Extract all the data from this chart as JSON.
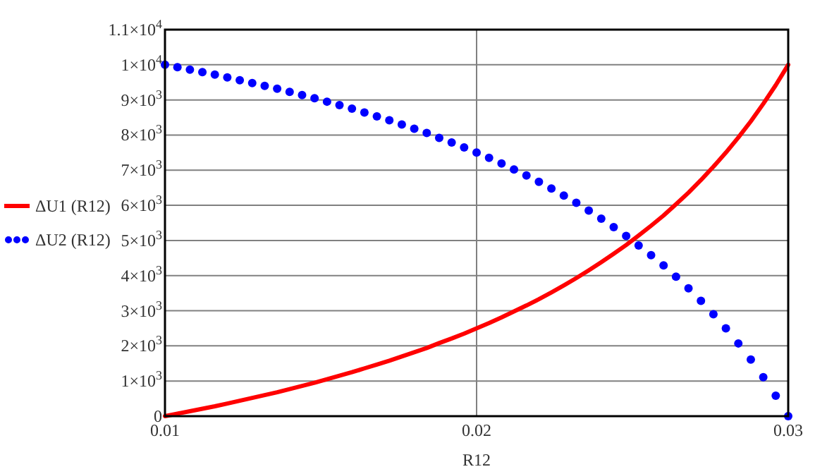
{
  "chart_data": {
    "type": "line",
    "xlabel": "R12",
    "x": [
      0.01,
      0.0104,
      0.0108,
      0.0112,
      0.0116,
      0.012,
      0.0124,
      0.0128,
      0.0132,
      0.0136,
      0.014,
      0.0144,
      0.0148,
      0.0152,
      0.0156,
      0.016,
      0.0164,
      0.0168,
      0.0172,
      0.0176,
      0.018,
      0.0184,
      0.0188,
      0.0192,
      0.0196,
      0.02,
      0.0204,
      0.0208,
      0.0212,
      0.0216,
      0.022,
      0.0224,
      0.0228,
      0.0232,
      0.0236,
      0.024,
      0.0244,
      0.0248,
      0.0252,
      0.0256,
      0.026,
      0.0264,
      0.0268,
      0.0272,
      0.0276,
      0.028,
      0.0284,
      0.0288,
      0.0292,
      0.0296,
      0.03
    ],
    "series": [
      {
        "name": "ΔU1 (R12)",
        "color": "#ff0000",
        "line_style": "solid",
        "marker": "none",
        "values": [
          0,
          70,
          140,
          210,
          280,
          360,
          440,
          520,
          600,
          680,
          770,
          860,
          950,
          1050,
          1150,
          1250,
          1360,
          1470,
          1580,
          1700,
          1820,
          1940,
          2080,
          2210,
          2350,
          2500,
          2650,
          2810,
          2980,
          3150,
          3330,
          3520,
          3720,
          3930,
          4150,
          4380,
          4620,
          4870,
          5140,
          5420,
          5710,
          6030,
          6360,
          6720,
          7100,
          7500,
          7930,
          8390,
          8890,
          9420,
          10000
        ]
      },
      {
        "name": "ΔU2 (R12)",
        "type": "scatter",
        "color": "#0000ff",
        "marker": "circle",
        "values": [
          10000,
          9930,
          9860,
          9790,
          9720,
          9640,
          9560,
          9480,
          9400,
          9320,
          9230,
          9140,
          9050,
          8950,
          8850,
          8750,
          8640,
          8530,
          8420,
          8300,
          8180,
          8060,
          7920,
          7790,
          7650,
          7500,
          7350,
          7190,
          7020,
          6850,
          6670,
          6480,
          6280,
          6070,
          5850,
          5620,
          5380,
          5130,
          4860,
          4580,
          4290,
          3970,
          3640,
          3280,
          2900,
          2500,
          2070,
          1610,
          1110,
          580,
          0
        ]
      }
    ],
    "xlim": [
      0.01,
      0.03
    ],
    "xticks": [
      0.01,
      0.02,
      0.03
    ],
    "ylim": [
      0,
      11000
    ],
    "yticks": [
      0,
      {
        "value": 1000,
        "label": "1×10$^{3}$"
      },
      {
        "value": 2000,
        "label": "2×10$^{3}$"
      },
      {
        "value": 3000,
        "label": "3×10$^{3}$"
      },
      {
        "value": 4000,
        "label": "4×10$^{3}$"
      },
      {
        "value": 5000,
        "label": "5×10$^{3}$"
      },
      {
        "value": 6000,
        "label": "6×10$^{3}$"
      },
      {
        "value": 7000,
        "label": "7×10$^{3}$"
      },
      {
        "value": 8000,
        "label": "8×10$^{3}$"
      },
      {
        "value": 9000,
        "label": "9×10$^{3}$"
      },
      {
        "value": 10000,
        "label": "1×10$^{4}$"
      },
      {
        "value": 11000,
        "label": "1.1×10$^{4}$"
      }
    ],
    "grid": true,
    "legend": "left"
  }
}
